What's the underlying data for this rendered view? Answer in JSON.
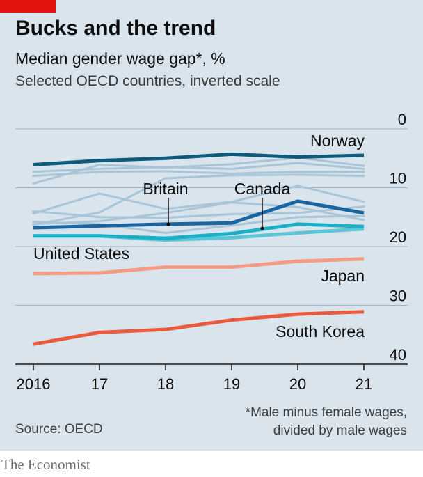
{
  "title": "Bucks and the trend",
  "subtitle": "Median gender wage gap*, %",
  "note": "Selected OECD countries, inverted scale",
  "footnote": [
    "*Male minus female wages,",
    "divided by male wages"
  ],
  "source": "Source: OECD",
  "brand": "The Economist",
  "colors": {
    "panel": "#d9e4ed",
    "red_tag": "#e3120b",
    "norway": "#0e5a7a",
    "britain": "#1a64a0",
    "canada": "#1ab1c8",
    "united_states": "#5cc6d6",
    "japan": "#f59a83",
    "south_korea": "#eb5a3c",
    "other": "#a9c5d8"
  },
  "chart_data": {
    "type": "line",
    "x": [
      2016,
      2017,
      2018,
      2019,
      2020,
      2021
    ],
    "x_tick_labels": [
      "2016",
      "17",
      "18",
      "19",
      "20",
      "21"
    ],
    "y_ticks": [
      0,
      10,
      20,
      30,
      40
    ],
    "ylim": [
      0,
      40
    ],
    "y_inverted": true,
    "grid": "horizontal",
    "series": [
      {
        "name": "Norway",
        "values": [
          6.1,
          5.4,
          5.0,
          4.3,
          4.8,
          4.5
        ]
      },
      {
        "name": "Britain",
        "values": [
          16.8,
          16.5,
          16.2,
          16.0,
          12.3,
          14.3
        ]
      },
      {
        "name": "Canada",
        "values": [
          18.2,
          18.2,
          18.6,
          17.8,
          16.2,
          16.6
        ]
      },
      {
        "name": "United States",
        "values": [
          18.2,
          18.2,
          18.9,
          18.5,
          17.7,
          17.0
        ]
      },
      {
        "name": "Japan",
        "values": [
          24.6,
          24.5,
          23.5,
          23.5,
          22.5,
          22.1
        ]
      },
      {
        "name": "South Korea",
        "values": [
          36.6,
          34.6,
          34.1,
          32.5,
          31.5,
          31.1
        ]
      }
    ],
    "other_series": [
      [
        8.0,
        7.3,
        7.2,
        7.6,
        7.3,
        7.3
      ],
      [
        9.3,
        6.1,
        6.6,
        6.0,
        4.9,
        6.3
      ],
      [
        7.3,
        6.8,
        6.5,
        6.8,
        5.8,
        6.8
      ],
      [
        14.0,
        15.0,
        15.1,
        14.5,
        14.3,
        13.2
      ],
      [
        14.4,
        11.0,
        13.6,
        12.4,
        9.7,
        12.4
      ],
      [
        15.8,
        16.2,
        17.7,
        16.4,
        15.0,
        14.8
      ],
      [
        16.2,
        15.7,
        14.3,
        12.5,
        13.3,
        15.5
      ],
      [
        16.3,
        14.2,
        8.4,
        7.9,
        7.8,
        8.0
      ]
    ],
    "labels": {
      "norway": "Norway",
      "britain": "Britain",
      "canada": "Canada",
      "united_states": "United States",
      "japan": "Japan",
      "south_korea": "South Korea"
    }
  }
}
